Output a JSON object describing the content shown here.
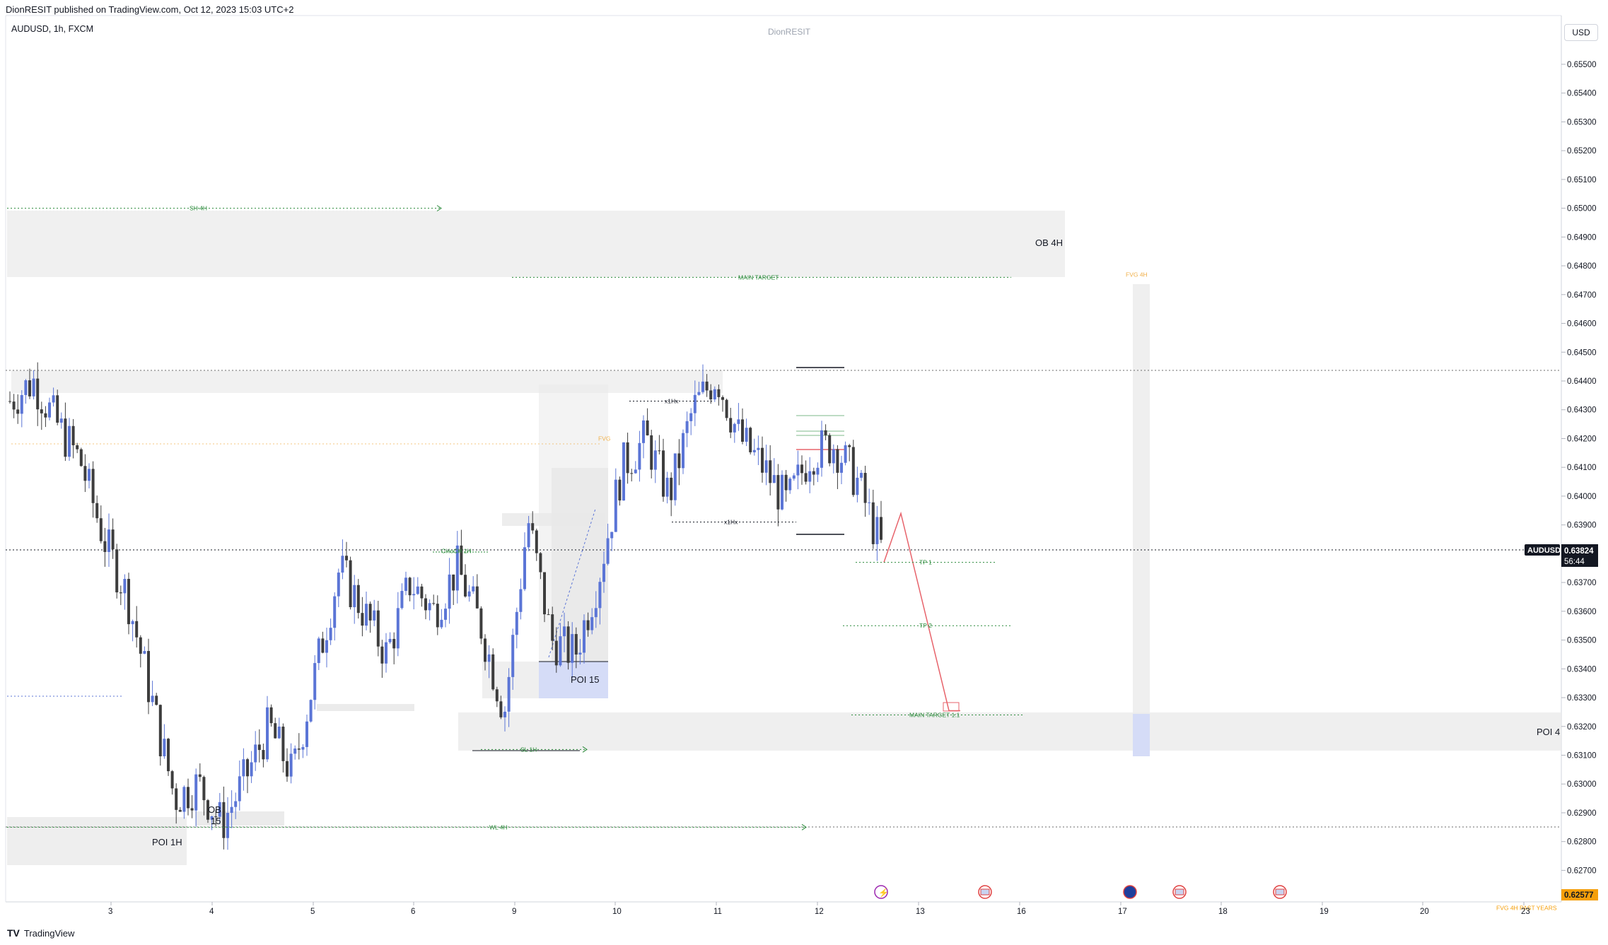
{
  "header": {
    "publish_line": "DionRESIT published on TradingView.com, Oct 12, 2023 15:03 UTC+2",
    "symbol_line": "AUDUSD, 1h, FXCM",
    "watermark": "DionRESIT",
    "currency": "USD"
  },
  "footer": {
    "logo": "TV",
    "brand": "TradingView"
  },
  "colors": {
    "bull": "#5b75d6",
    "bear": "#3d3d3d",
    "zone": "#ebebeb",
    "poi15": "#d5dcf7",
    "fvg": "#f0b04a",
    "green": "#2a8a3a",
    "red": "#e7636b",
    "price_tag": "#131722",
    "last_price_tag": "#f59f0a"
  },
  "chart_data": {
    "type": "candlestick",
    "symbol": "AUDUSD",
    "timeframe": "1h",
    "ylim": [
      0.6262,
      0.6563
    ],
    "y_ticks": [
      "0.65500",
      "0.65400",
      "0.65300",
      "0.65200",
      "0.65100",
      "0.65000",
      "0.64900",
      "0.64800",
      "0.64700",
      "0.64600",
      "0.64500",
      "0.64400",
      "0.64300",
      "0.64200",
      "0.64100",
      "0.64000",
      "0.63900",
      "0.63800",
      "0.63700",
      "0.63600",
      "0.63500",
      "0.63400",
      "0.63300",
      "0.63200",
      "0.63100",
      "0.63000",
      "0.62900",
      "0.62800",
      "0.62700"
    ],
    "x_ticks": [
      "3",
      "4",
      "5",
      "6",
      "9",
      "10",
      "11",
      "12",
      "13",
      "16",
      "17",
      "18",
      "19",
      "20",
      "23"
    ],
    "current_price": {
      "symbol": "AUDUSD",
      "value": "0.63824",
      "countdown": "56:44"
    },
    "last_label": {
      "value": "0.62577"
    },
    "close_path": [
      {
        "day": "2",
        "close": 0.6433
      },
      {
        "day": "2",
        "close": 0.644
      },
      {
        "day": "2",
        "close": 0.6425
      },
      {
        "day": "2",
        "close": 0.6412
      },
      {
        "day": "3",
        "close": 0.6385
      },
      {
        "day": "3",
        "close": 0.6365
      },
      {
        "day": "3",
        "close": 0.633
      },
      {
        "day": "3",
        "close": 0.6295
      },
      {
        "day": "3",
        "close": 0.63
      },
      {
        "day": "4",
        "close": 0.6286
      },
      {
        "day": "4",
        "close": 0.6302
      },
      {
        "day": "4",
        "close": 0.632
      },
      {
        "day": "4",
        "close": 0.6303
      },
      {
        "day": "5",
        "close": 0.634
      },
      {
        "day": "5",
        "close": 0.6375
      },
      {
        "day": "5",
        "close": 0.636
      },
      {
        "day": "5",
        "close": 0.6345
      },
      {
        "day": "6",
        "close": 0.637
      },
      {
        "day": "6",
        "close": 0.636
      },
      {
        "day": "6",
        "close": 0.6375
      },
      {
        "day": "6",
        "close": 0.6355
      },
      {
        "day": "9",
        "close": 0.6325
      },
      {
        "day": "9",
        "close": 0.6392
      },
      {
        "day": "9",
        "close": 0.635
      },
      {
        "day": "9",
        "close": 0.6345
      },
      {
        "day": "10",
        "close": 0.6372
      },
      {
        "day": "10",
        "close": 0.641
      },
      {
        "day": "10",
        "close": 0.642
      },
      {
        "day": "10",
        "close": 0.64
      },
      {
        "day": "11",
        "close": 0.643
      },
      {
        "day": "11",
        "close": 0.6442
      },
      {
        "day": "11",
        "close": 0.642
      },
      {
        "day": "11",
        "close": 0.641
      },
      {
        "day": "12",
        "close": 0.6397
      },
      {
        "day": "12",
        "close": 0.6415
      },
      {
        "day": "12",
        "close": 0.6418
      },
      {
        "day": "12",
        "close": 0.6405
      },
      {
        "day": "12",
        "close": 0.6382
      }
    ],
    "zones": [
      {
        "label": "OB 4H",
        "from": 0.6478,
        "to": 0.6501
      },
      {
        "label": "POI 15",
        "from": 0.6331,
        "to": 0.6344
      },
      {
        "label": "POI 1H",
        "from": 0.6279,
        "to": 0.629
      },
      {
        "label": "POI 4",
        "from": 0.6312,
        "to": 0.6325
      },
      {
        "label": "OB 15",
        "from": 0.6286,
        "to": 0.629
      }
    ],
    "levels": [
      {
        "label": "SH 4H",
        "value": 0.65
      },
      {
        "label": "MAIN TARGET",
        "value": 0.6476
      },
      {
        "label": "FVG 4H",
        "value": 0.6477
      },
      {
        "label": "x1Hx",
        "value": 0.6433
      },
      {
        "label": "FVG",
        "value": 0.642
      },
      {
        "label": "x1Hx",
        "value": 0.6391
      },
      {
        "label": "CHoCH 1H",
        "value": 0.6381
      },
      {
        "label": "TP 1",
        "value": 0.6377
      },
      {
        "label": "TP 2",
        "value": 0.6355
      },
      {
        "label": "MAIN TARGET 1:1",
        "value": 0.6324
      },
      {
        "label": "SL 1H",
        "value": 0.6312
      },
      {
        "label": "WL 4H",
        "value": 0.6285
      },
      {
        "label": "FVG 4H PAST YEARS",
        "value": 0.6257
      }
    ],
    "projection": {
      "from": 0.6377,
      "peak": 0.6394,
      "target": 0.6324
    }
  }
}
